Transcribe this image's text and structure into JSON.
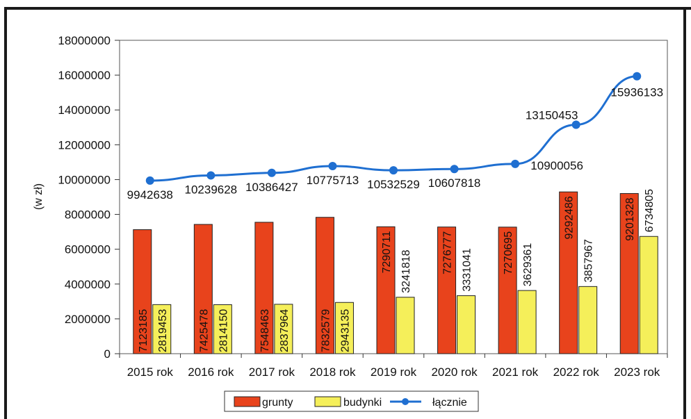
{
  "chart_data": {
    "type": "bar",
    "title": "",
    "xlabel": "",
    "ylabel": "(w zł)",
    "ylim": [
      0,
      18000000
    ],
    "yticks": [
      0,
      2000000,
      4000000,
      6000000,
      8000000,
      10000000,
      12000000,
      14000000,
      16000000,
      18000000
    ],
    "ytick_labels": [
      "0",
      "2000000",
      "4000000",
      "6000000",
      "8000000",
      "10000000",
      "12000000",
      "14000000",
      "16000000",
      "18000000"
    ],
    "categories": [
      "2015 rok",
      "2016 rok",
      "2017 rok",
      "2018 rok",
      "2019 rok",
      "2020 rok",
      "2021 rok",
      "2022 rok",
      "2023 rok"
    ],
    "series": [
      {
        "name": "grunty",
        "kind": "bar",
        "color": "#e8431c",
        "values": [
          7123185,
          7425478,
          7548463,
          7832579,
          7290711,
          7276777,
          7270695,
          9292486,
          9201328
        ],
        "labels": [
          "7123185",
          "7425478",
          "7548463",
          "7832579",
          "7290711",
          "7276777",
          "7270695",
          "9292486",
          "9201328"
        ]
      },
      {
        "name": "budynki",
        "kind": "bar",
        "color": "#f5ef5a",
        "values": [
          2819453,
          2814150,
          2837964,
          2943135,
          3241818,
          3331041,
          3629361,
          3857967,
          6734805
        ],
        "labels": [
          "2819453",
          "2814150",
          "2837964",
          "2943135",
          "3241818",
          "3331041",
          "3629361",
          "3857967",
          "6734805"
        ]
      },
      {
        "name": "łącznie",
        "kind": "line",
        "color": "#1f6fd1",
        "values": [
          9942638,
          10239628,
          10386427,
          10775713,
          10532529,
          10607818,
          10900056,
          13150453,
          15936133
        ],
        "labels": [
          "9942638",
          "10239628",
          "10386427",
          "10775713",
          "10532529",
          "10607818",
          "10900056",
          "13150453",
          "15936133"
        ]
      }
    ],
    "legend_position": "bottom",
    "grid": false
  }
}
